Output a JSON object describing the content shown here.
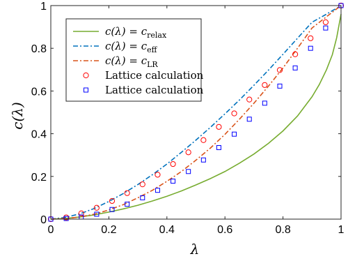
{
  "chart_data": {
    "type": "line",
    "xlabel": "λ",
    "ylabel": "c(λ)",
    "xlim": [
      0,
      1
    ],
    "ylim": [
      0,
      1
    ],
    "xticks": [
      0,
      0.2,
      0.4,
      0.6,
      0.8,
      1
    ],
    "yticks": [
      0,
      0.2,
      0.4,
      0.6,
      0.8,
      1
    ],
    "xtick_labels": [
      "0",
      "0.2",
      "0.4",
      "0.6",
      "0.8",
      "1"
    ],
    "ytick_labels": [
      "0",
      "0.2",
      "0.4",
      "0.6",
      "0.8",
      "1"
    ],
    "grid": false,
    "legend_position": "top-left",
    "colors": {
      "relax": "#77AC30",
      "eff": "#0072BD",
      "lr": "#D95319",
      "circle": "#FF0000",
      "square": "#0000FF"
    },
    "series": [
      {
        "name": "c(λ) = c_relax",
        "legend": {
          "lhs": "c(λ) = c",
          "sub": "relax"
        },
        "style": "solid",
        "x": [
          0,
          0.05,
          0.1,
          0.15,
          0.2,
          0.25,
          0.3,
          0.35,
          0.4,
          0.45,
          0.5,
          0.55,
          0.6,
          0.65,
          0.7,
          0.75,
          0.8,
          0.85,
          0.9,
          0.925,
          0.95,
          0.97,
          0.985,
          1.0
        ],
        "y": [
          0,
          0.003,
          0.01,
          0.02,
          0.033,
          0.048,
          0.065,
          0.085,
          0.107,
          0.132,
          0.16,
          0.19,
          0.223,
          0.262,
          0.305,
          0.355,
          0.413,
          0.483,
          0.573,
          0.63,
          0.7,
          0.77,
          0.85,
          0.96
        ]
      },
      {
        "name": "c(λ) = c_eff",
        "legend": {
          "lhs": "c(λ) = c",
          "sub": "eff"
        },
        "style": "dashdot",
        "x": [
          0,
          0.05,
          0.1,
          0.15,
          0.2,
          0.25,
          0.3,
          0.35,
          0.4,
          0.45,
          0.5,
          0.55,
          0.6,
          0.65,
          0.7,
          0.75,
          0.8,
          0.85,
          0.9,
          0.95,
          1.0
        ],
        "y": [
          0,
          0.008,
          0.025,
          0.05,
          0.083,
          0.12,
          0.162,
          0.208,
          0.258,
          0.313,
          0.37,
          0.43,
          0.493,
          0.558,
          0.627,
          0.698,
          0.772,
          0.847,
          0.922,
          0.96,
          1.0
        ]
      },
      {
        "name": "c(λ) = c_LR",
        "legend": {
          "lhs": "c(λ) = c",
          "sub": "LR"
        },
        "style": "dashdot",
        "x": [
          0,
          0.05,
          0.1,
          0.15,
          0.2,
          0.25,
          0.3,
          0.35,
          0.4,
          0.45,
          0.5,
          0.55,
          0.6,
          0.65,
          0.7,
          0.75,
          0.8,
          0.85,
          0.9,
          0.95,
          1.0
        ],
        "y": [
          0,
          0.003,
          0.01,
          0.023,
          0.043,
          0.068,
          0.1,
          0.135,
          0.177,
          0.223,
          0.276,
          0.333,
          0.397,
          0.468,
          0.543,
          0.623,
          0.708,
          0.8,
          0.895,
          0.948,
          1.0
        ]
      },
      {
        "name": "Lattice calculation (circles)",
        "legend": {
          "lhs": "Lattice calculation",
          "sub": ""
        },
        "style": "circle",
        "x": [
          0,
          0.053,
          0.105,
          0.158,
          0.211,
          0.263,
          0.316,
          0.368,
          0.421,
          0.474,
          0.526,
          0.579,
          0.632,
          0.684,
          0.737,
          0.789,
          0.842,
          0.895,
          0.947,
          1.0
        ],
        "y": [
          0,
          0.008,
          0.027,
          0.053,
          0.085,
          0.122,
          0.163,
          0.208,
          0.258,
          0.313,
          0.37,
          0.432,
          0.495,
          0.56,
          0.628,
          0.698,
          0.772,
          0.847,
          0.922,
          1.0
        ]
      },
      {
        "name": "Lattice calculation (squares)",
        "legend": {
          "lhs": "Lattice calculation",
          "sub": ""
        },
        "style": "square",
        "x": [
          0,
          0.053,
          0.105,
          0.158,
          0.211,
          0.263,
          0.316,
          0.368,
          0.421,
          0.474,
          0.526,
          0.579,
          0.632,
          0.684,
          0.737,
          0.789,
          0.842,
          0.895,
          0.947,
          1.0
        ],
        "y": [
          0,
          0.003,
          0.01,
          0.023,
          0.045,
          0.07,
          0.1,
          0.135,
          0.178,
          0.223,
          0.277,
          0.335,
          0.398,
          0.468,
          0.543,
          0.623,
          0.708,
          0.8,
          0.895,
          1.0
        ]
      }
    ]
  }
}
